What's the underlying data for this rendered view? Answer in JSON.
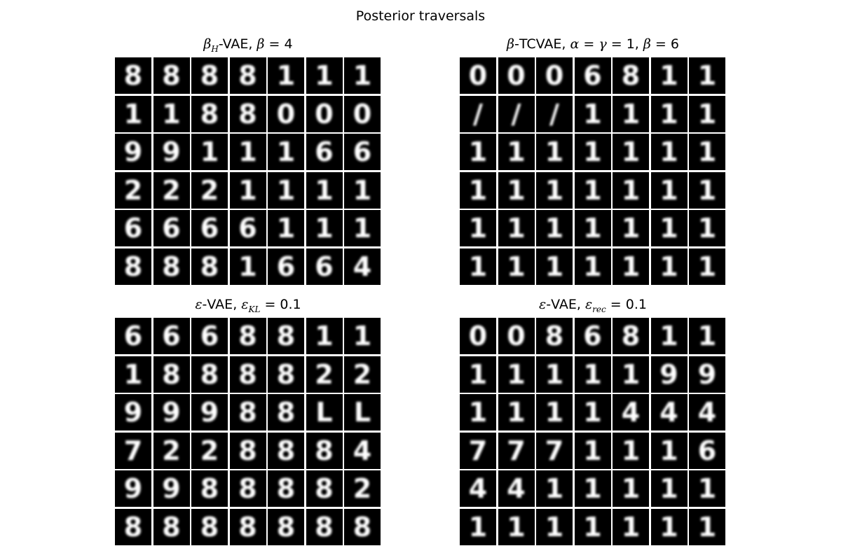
{
  "figure_title": "Posterior traversals",
  "panels": [
    {
      "title_html": "<i>β<sub>H</sub></i>-VAE, <i>β</i> = 4",
      "rows": [
        [
          "8",
          "8",
          "8",
          "8",
          "1",
          "1",
          "1"
        ],
        [
          "1",
          "1",
          "8",
          "8",
          "0",
          "0",
          "0"
        ],
        [
          "9",
          "9",
          "1",
          "1",
          "1",
          "6",
          "6"
        ],
        [
          "2",
          "2",
          "2",
          "1",
          "1",
          "1",
          "1"
        ],
        [
          "6",
          "6",
          "6",
          "6",
          "1",
          "1",
          "1"
        ],
        [
          "8",
          "8",
          "8",
          "1",
          "6",
          "6",
          "4"
        ]
      ]
    },
    {
      "title_html": "<i>β</i>-TCVAE, <i>α</i> = <i>γ</i> = 1, <i>β</i> = 6",
      "rows": [
        [
          "0",
          "0",
          "0",
          "6",
          "8",
          "1",
          "1"
        ],
        [
          "/",
          "/",
          "/",
          "1",
          "1",
          "1",
          "1"
        ],
        [
          "1",
          "1",
          "1",
          "1",
          "1",
          "1",
          "1"
        ],
        [
          "1",
          "1",
          "1",
          "1",
          "1",
          "1",
          "1"
        ],
        [
          "1",
          "1",
          "1",
          "1",
          "1",
          "1",
          "1"
        ],
        [
          "1",
          "1",
          "1",
          "1",
          "1",
          "1",
          "1"
        ]
      ]
    },
    {
      "title_html": "<i>ε</i>-VAE, <i>ε<sub>KL</sub></i> = 0.1",
      "rows": [
        [
          "6",
          "6",
          "6",
          "8",
          "8",
          "1",
          "1"
        ],
        [
          "1",
          "8",
          "8",
          "8",
          "8",
          "2",
          "2"
        ],
        [
          "9",
          "9",
          "9",
          "8",
          "8",
          "L",
          "L"
        ],
        [
          "7",
          "2",
          "2",
          "8",
          "8",
          "8",
          "4"
        ],
        [
          "9",
          "9",
          "8",
          "8",
          "8",
          "8",
          "2"
        ],
        [
          "8",
          "8",
          "8",
          "8",
          "8",
          "8",
          "8"
        ]
      ]
    },
    {
      "title_html": "<i>ε</i>-VAE, <i>ε<sub>rec</sub></i> = 0.1",
      "rows": [
        [
          "0",
          "0",
          "8",
          "6",
          "8",
          "1",
          "1"
        ],
        [
          "1",
          "1",
          "1",
          "1",
          "1",
          "9",
          "9"
        ],
        [
          "1",
          "1",
          "1",
          "1",
          "4",
          "4",
          "4"
        ],
        [
          "7",
          "7",
          "7",
          "1",
          "1",
          "1",
          "6"
        ],
        [
          "4",
          "4",
          "1",
          "1",
          "1",
          "1",
          "1"
        ],
        [
          "1",
          "1",
          "1",
          "1",
          "1",
          "1",
          "1"
        ]
      ]
    }
  ]
}
